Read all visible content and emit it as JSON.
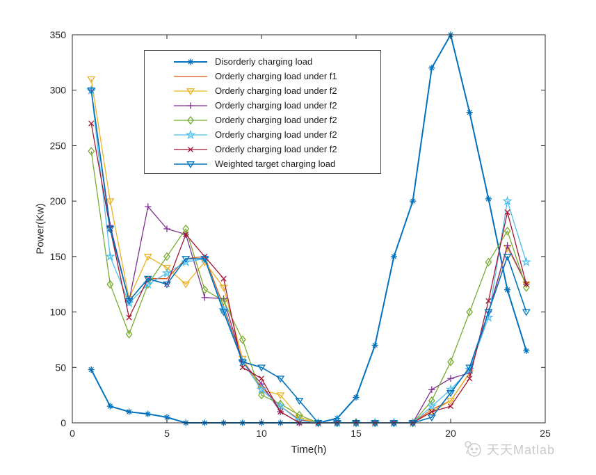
{
  "figure": {
    "background": "#ffffff",
    "axes_color": "#262626"
  },
  "watermark": {
    "text": "天天Matlab",
    "color": "#c9c9c9",
    "logo": "panda-mascot-logo"
  },
  "chart_data": {
    "type": "line",
    "title": "",
    "xlabel": "Time(h)",
    "ylabel": "Power(Kw)",
    "xlim": [
      0,
      25
    ],
    "ylim": [
      0,
      350
    ],
    "xticks": [
      0,
      5,
      10,
      15,
      20,
      25
    ],
    "yticks": [
      0,
      50,
      100,
      150,
      200,
      250,
      300,
      350
    ],
    "grid": false,
    "legend_position": "upper-left-inside",
    "x": [
      1,
      2,
      3,
      4,
      5,
      6,
      7,
      8,
      9,
      10,
      11,
      12,
      13,
      14,
      15,
      16,
      17,
      18,
      19,
      20,
      21,
      22,
      23,
      24
    ],
    "series": [
      {
        "name": "Disorderly charging load",
        "color": "#0072BD",
        "marker": "asterisk",
        "linewidth": 2,
        "values": [
          48,
          15,
          10,
          8,
          5,
          0,
          0,
          0,
          0,
          0,
          0,
          0,
          0,
          4,
          23,
          70,
          150,
          200,
          320,
          350,
          280,
          202,
          120,
          65
        ]
      },
      {
        "name": "Orderly charging load under f1",
        "color": "#D95319",
        "marker": "none",
        "linewidth": 1.3,
        "values": [
          300,
          175,
          110,
          130,
          130,
          148,
          150,
          105,
          55,
          32,
          15,
          3,
          0,
          0,
          0,
          0,
          0,
          0,
          12,
          20,
          45,
          100,
          158,
          125
        ]
      },
      {
        "name": "Orderly charging load under f2",
        "color": "#EDB120",
        "marker": "triangle-down",
        "linewidth": 1.3,
        "values": [
          310,
          200,
          112,
          150,
          140,
          125,
          145,
          122,
          58,
          30,
          25,
          5,
          0,
          0,
          0,
          0,
          0,
          0,
          10,
          20,
          45,
          100,
          158,
          125
        ]
      },
      {
        "name": "Orderly charging load under f2",
        "color": "#7E2F8E",
        "marker": "plus",
        "linewidth": 1.3,
        "values": [
          300,
          178,
          110,
          195,
          175,
          170,
          113,
          112,
          55,
          35,
          10,
          0,
          0,
          0,
          0,
          0,
          0,
          0,
          30,
          40,
          45,
          100,
          160,
          125
        ]
      },
      {
        "name": "Orderly charging load under f2",
        "color": "#77AC30",
        "marker": "diamond",
        "linewidth": 1.3,
        "values": [
          245,
          125,
          80,
          125,
          150,
          175,
          120,
          110,
          75,
          25,
          17,
          7,
          0,
          0,
          0,
          0,
          0,
          0,
          20,
          55,
          100,
          145,
          173,
          122
        ]
      },
      {
        "name": "Orderly charging load under f2",
        "color": "#4DBEEE",
        "marker": "star",
        "linewidth": 1.3,
        "values": [
          300,
          150,
          108,
          125,
          135,
          145,
          148,
          102,
          55,
          30,
          15,
          2,
          0,
          0,
          0,
          0,
          0,
          0,
          15,
          30,
          48,
          95,
          200,
          145
        ]
      },
      {
        "name": "Orderly charging load under f2",
        "color": "#A2142F",
        "marker": "x",
        "linewidth": 1.3,
        "values": [
          270,
          175,
          95,
          130,
          125,
          170,
          150,
          130,
          50,
          40,
          10,
          0,
          0,
          0,
          0,
          0,
          0,
          0,
          10,
          15,
          40,
          110,
          190,
          125
        ]
      },
      {
        "name": "Weighted target charging load",
        "color": "#0072BD",
        "marker": "triangle-down",
        "linewidth": 1.6,
        "values": [
          300,
          175,
          110,
          130,
          125,
          148,
          148,
          100,
          55,
          50,
          40,
          20,
          0,
          0,
          0,
          0,
          0,
          0,
          5,
          27,
          50,
          100,
          150,
          100
        ]
      }
    ]
  }
}
